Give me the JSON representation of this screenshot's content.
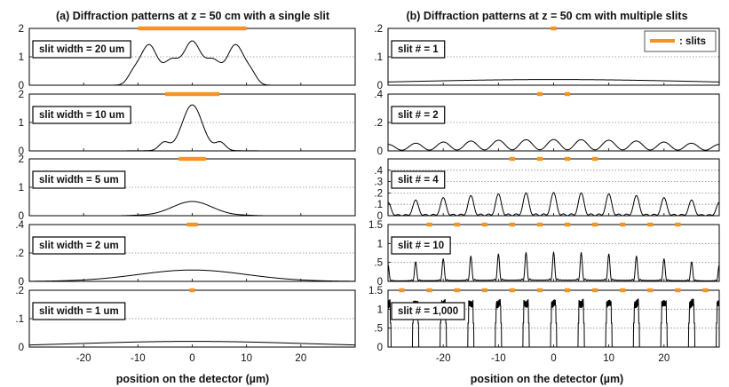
{
  "chart_data": {
    "type": "line",
    "x_range": [
      -30,
      30
    ],
    "xlabel": "position on the detector (µm)",
    "xticks": [
      -20,
      -10,
      0,
      10,
      20
    ],
    "colors": {
      "curve": "#000000",
      "slit": "#f7941d",
      "grid": "#888888",
      "axis": "#000000"
    },
    "legend": {
      "label": ": slits",
      "placement": "top-right"
    },
    "panels": [
      {
        "id": "a",
        "title": "(a) Diffraction patterns at z = 50 cm with a single slit",
        "subplots": [
          {
            "label": "slit width = 20 um",
            "ylim": [
              0,
              2
            ],
            "yticks": [
              0,
              1,
              2
            ],
            "slits": [
              [
                -10,
                10
              ]
            ],
            "series": {
              "type": "single",
              "width": 20,
              "intensity": 1.0,
              "z": 50,
              "wavelength": 0.5
            }
          },
          {
            "label": "slit width = 10 um",
            "ylim": [
              0,
              2
            ],
            "yticks": [
              0,
              1,
              2
            ],
            "slits": [
              [
                -5,
                5
              ]
            ],
            "series": {
              "type": "single",
              "width": 10,
              "intensity": 1.0,
              "z": 50,
              "wavelength": 0.5
            }
          },
          {
            "label": "slit width = 5 um",
            "ylim": [
              0,
              2
            ],
            "yticks": [
              0,
              1,
              2
            ],
            "slits": [
              [
                -2.5,
                2.5
              ]
            ],
            "series": {
              "type": "single",
              "width": 5,
              "intensity": 1.0,
              "z": 50,
              "wavelength": 0.5
            }
          },
          {
            "label": "slit width = 2 um",
            "ylim": [
              0,
              0.4
            ],
            "yticks": [
              0,
              0.2,
              0.4
            ],
            "slits": [
              [
                -1,
                1
              ]
            ],
            "series": {
              "type": "single",
              "width": 2,
              "intensity": 1.0,
              "z": 50,
              "wavelength": 0.5
            }
          },
          {
            "label": "slit width = 1 um",
            "ylim": [
              0,
              0.2
            ],
            "yticks": [
              0,
              0.1,
              0.2
            ],
            "slits": [
              [
                -0.5,
                0.5
              ]
            ],
            "series": {
              "type": "single",
              "width": 1,
              "intensity": 1.0,
              "z": 50,
              "wavelength": 0.5
            }
          }
        ]
      },
      {
        "id": "b",
        "title": "(b) Diffraction patterns at z = 50 cm with multiple slits",
        "subplots": [
          {
            "label": "slit # = 1",
            "ylim": [
              0,
              0.2
            ],
            "yticks": [
              0,
              0.1,
              0.2
            ],
            "slits": [
              [
                -0.5,
                0.5
              ]
            ],
            "series": {
              "type": "multi",
              "n": 1,
              "period": 5,
              "peak": 0.02,
              "period_x": 600
            }
          },
          {
            "label": "slit # = 2",
            "ylim": [
              0,
              0.4
            ],
            "yticks": [
              0,
              0.2,
              0.4
            ],
            "slits": [
              [
                -3,
                -2
              ],
              [
                2,
                3
              ]
            ],
            "series": {
              "type": "multi",
              "n": 2,
              "period": 5,
              "peak": 0.08,
              "period_x": 5
            }
          },
          {
            "label": "slit # = 4",
            "ylim": [
              0,
              0.5
            ],
            "yticks": [
              0,
              0.1,
              0.2,
              0.3,
              0.4
            ],
            "slits": [
              [
                -8,
                -7
              ],
              [
                -3,
                -2
              ],
              [
                2,
                3
              ],
              [
                7,
                8
              ]
            ],
            "series": {
              "type": "multi",
              "n": 4,
              "period": 5,
              "peak": 0.19,
              "period_x": 5
            }
          },
          {
            "label": "slit # = 10",
            "ylim": [
              0,
              1.5
            ],
            "yticks": [
              0,
              0.5,
              1,
              1.5
            ],
            "slits": [
              [
                -23,
                -22
              ],
              [
                -18,
                -17
              ],
              [
                -13,
                -12
              ],
              [
                -8,
                -7
              ],
              [
                -3,
                -2
              ],
              [
                2,
                3
              ],
              [
                7,
                8
              ],
              [
                12,
                13
              ],
              [
                17,
                18
              ],
              [
                22,
                23
              ]
            ],
            "series": {
              "type": "multi",
              "n": 10,
              "period": 5,
              "peak": 0.75,
              "period_x": 5
            }
          },
          {
            "label": "slit # = 1,000",
            "ylim": [
              0,
              1.5
            ],
            "yticks": [
              0,
              0.5,
              1,
              1.5
            ],
            "slits": [
              [
                -28,
                -27
              ],
              [
                -23,
                -22
              ],
              [
                -18,
                -17
              ],
              [
                -13,
                -12
              ],
              [
                -8,
                -7
              ],
              [
                -3,
                -2
              ],
              [
                2,
                3
              ],
              [
                7,
                8
              ],
              [
                12,
                13
              ],
              [
                17,
                18
              ],
              [
                22,
                23
              ],
              [
                27,
                28
              ]
            ],
            "series": {
              "type": "comb",
              "period": 5,
              "width": 1,
              "level": 1.15
            }
          }
        ]
      }
    ]
  }
}
